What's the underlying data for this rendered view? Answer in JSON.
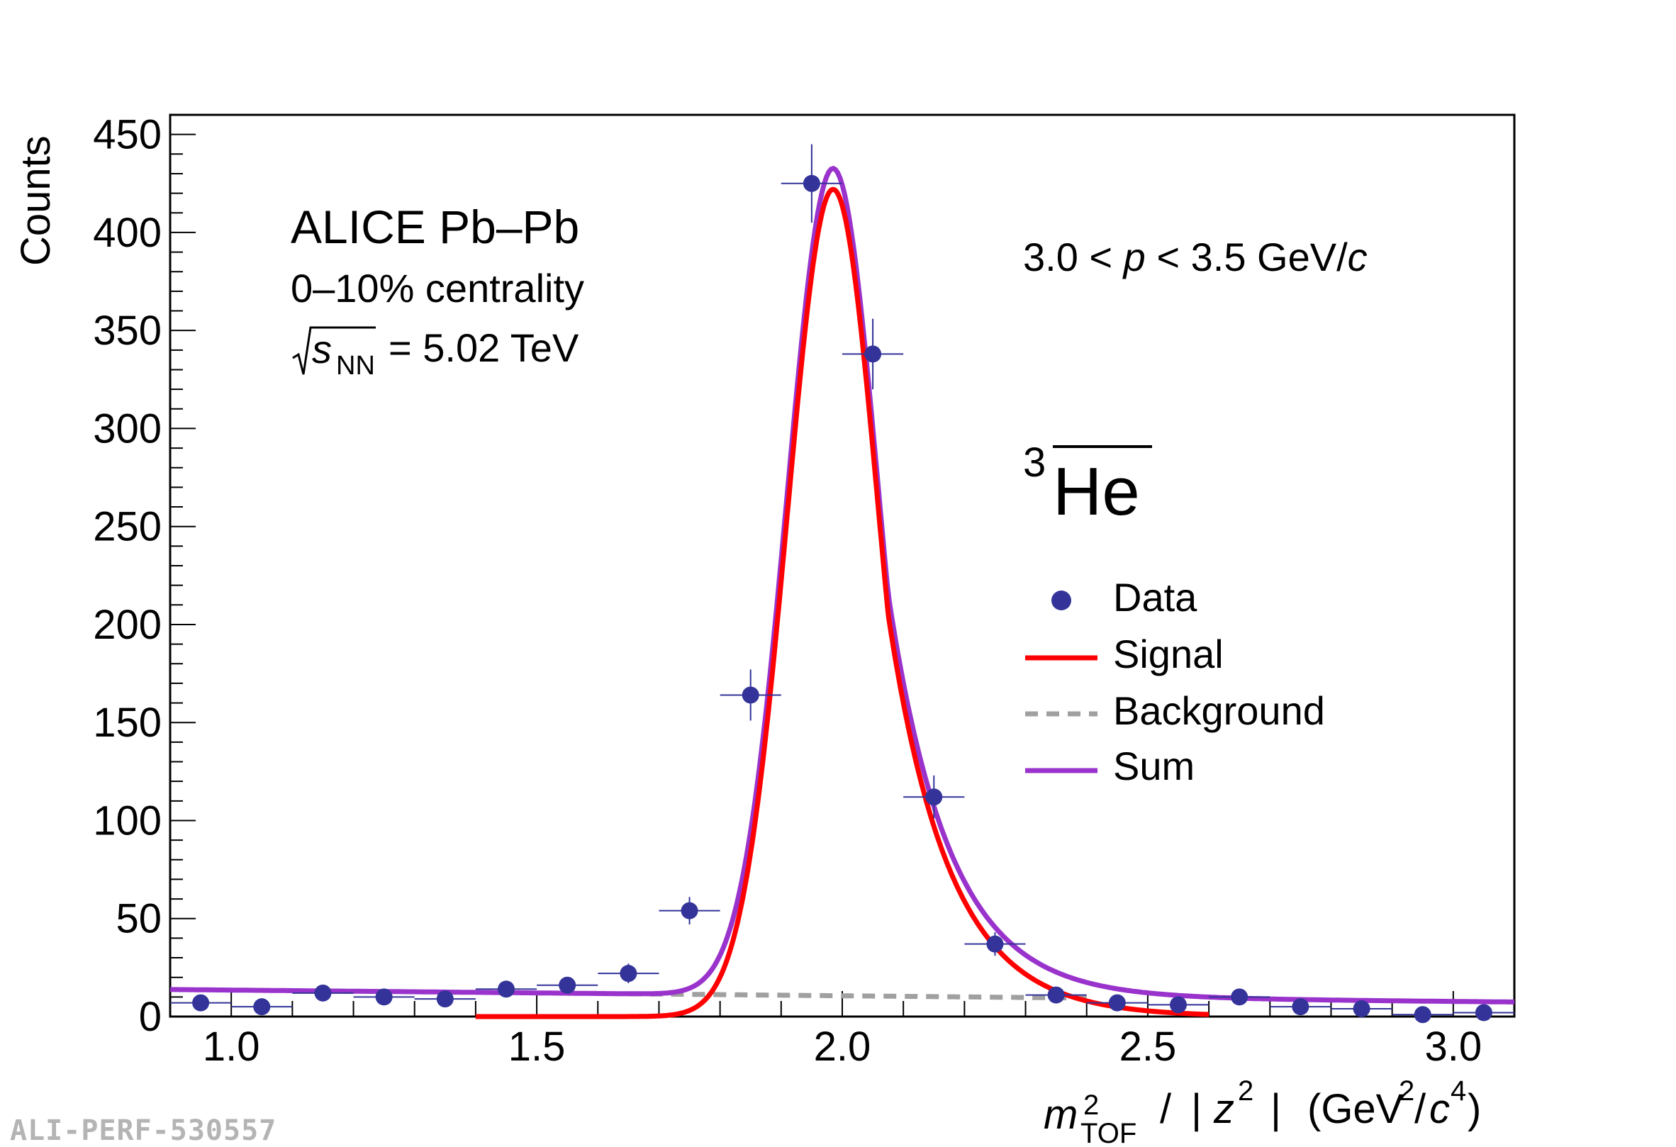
{
  "chart_data": {
    "type": "scatter",
    "xlabel": {
      "main": "m",
      "sup": "2",
      "sub": "TOF",
      "rest": "/ | z",
      "sup2": "2",
      "rest2": " |  (GeV",
      "sup3": "2",
      "rest3": "/c",
      "sup4": "4",
      "rest4": ")"
    },
    "ylabel": "Counts",
    "xlim": [
      0.9,
      3.1
    ],
    "ylim": [
      0,
      460
    ],
    "x_ticks": [
      "1.0",
      "1.5",
      "2.0",
      "2.5",
      "3.0"
    ],
    "y_ticks": [
      "0",
      "50",
      "100",
      "150",
      "200",
      "250",
      "300",
      "350",
      "400",
      "450"
    ],
    "annotations": {
      "experiment": "ALICE Pb–Pb",
      "centrality": "0–10% centrality",
      "energy_prefix": "s",
      "energy_sub": "NN",
      "energy_value": "= 5.02 TeV",
      "momentum_range": "3.0 < p < 3.5 GeV/c",
      "particle_sup": "3",
      "particle": "He"
    },
    "legend": [
      {
        "name": "Data",
        "marker": "circle",
        "color": "#333399"
      },
      {
        "name": "Signal",
        "marker": "line",
        "color": "#ff0000"
      },
      {
        "name": "Background",
        "marker": "dashed",
        "color": "#a0a0a0"
      },
      {
        "name": "Sum",
        "marker": "line",
        "color": "#9933cc"
      }
    ],
    "legend_position": "right",
    "data_points": [
      {
        "x": 0.95,
        "y": 7,
        "yerr": 3
      },
      {
        "x": 1.05,
        "y": 5,
        "yerr": 2
      },
      {
        "x": 1.15,
        "y": 12,
        "yerr": 3
      },
      {
        "x": 1.25,
        "y": 10,
        "yerr": 3
      },
      {
        "x": 1.35,
        "y": 9,
        "yerr": 3
      },
      {
        "x": 1.45,
        "y": 14,
        "yerr": 4
      },
      {
        "x": 1.55,
        "y": 16,
        "yerr": 4
      },
      {
        "x": 1.65,
        "y": 22,
        "yerr": 5
      },
      {
        "x": 1.75,
        "y": 54,
        "yerr": 7
      },
      {
        "x": 1.85,
        "y": 164,
        "yerr": 13
      },
      {
        "x": 1.95,
        "y": 425,
        "yerr": 20
      },
      {
        "x": 2.05,
        "y": 338,
        "yerr": 18
      },
      {
        "x": 2.15,
        "y": 112,
        "yerr": 11
      },
      {
        "x": 2.25,
        "y": 37,
        "yerr": 6
      },
      {
        "x": 2.35,
        "y": 11,
        "yerr": 3
      },
      {
        "x": 2.45,
        "y": 7,
        "yerr": 3
      },
      {
        "x": 2.55,
        "y": 6,
        "yerr": 2
      },
      {
        "x": 2.65,
        "y": 10,
        "yerr": 3
      },
      {
        "x": 2.75,
        "y": 5,
        "yerr": 2
      },
      {
        "x": 2.85,
        "y": 4,
        "yerr": 2
      },
      {
        "x": 2.95,
        "y": 1,
        "yerr": 1
      },
      {
        "x": 3.05,
        "y": 2,
        "yerr": 1
      }
    ],
    "fit": {
      "signal": {
        "amplitude": 422,
        "mean": 1.985,
        "sigma": 0.075,
        "tail_right": 0.11,
        "xrange": [
          1.4,
          2.6
        ]
      },
      "background": {
        "slope": -2.9,
        "intercept": 13.8,
        "offset": 0.9,
        "xrange": [
          0.9,
          3.1
        ]
      }
    },
    "colors": {
      "data": "#333399",
      "signal": "#ff0000",
      "background": "#a0a0a0",
      "sum": "#9933cc"
    }
  },
  "watermark": "ALI-PERF-530557"
}
